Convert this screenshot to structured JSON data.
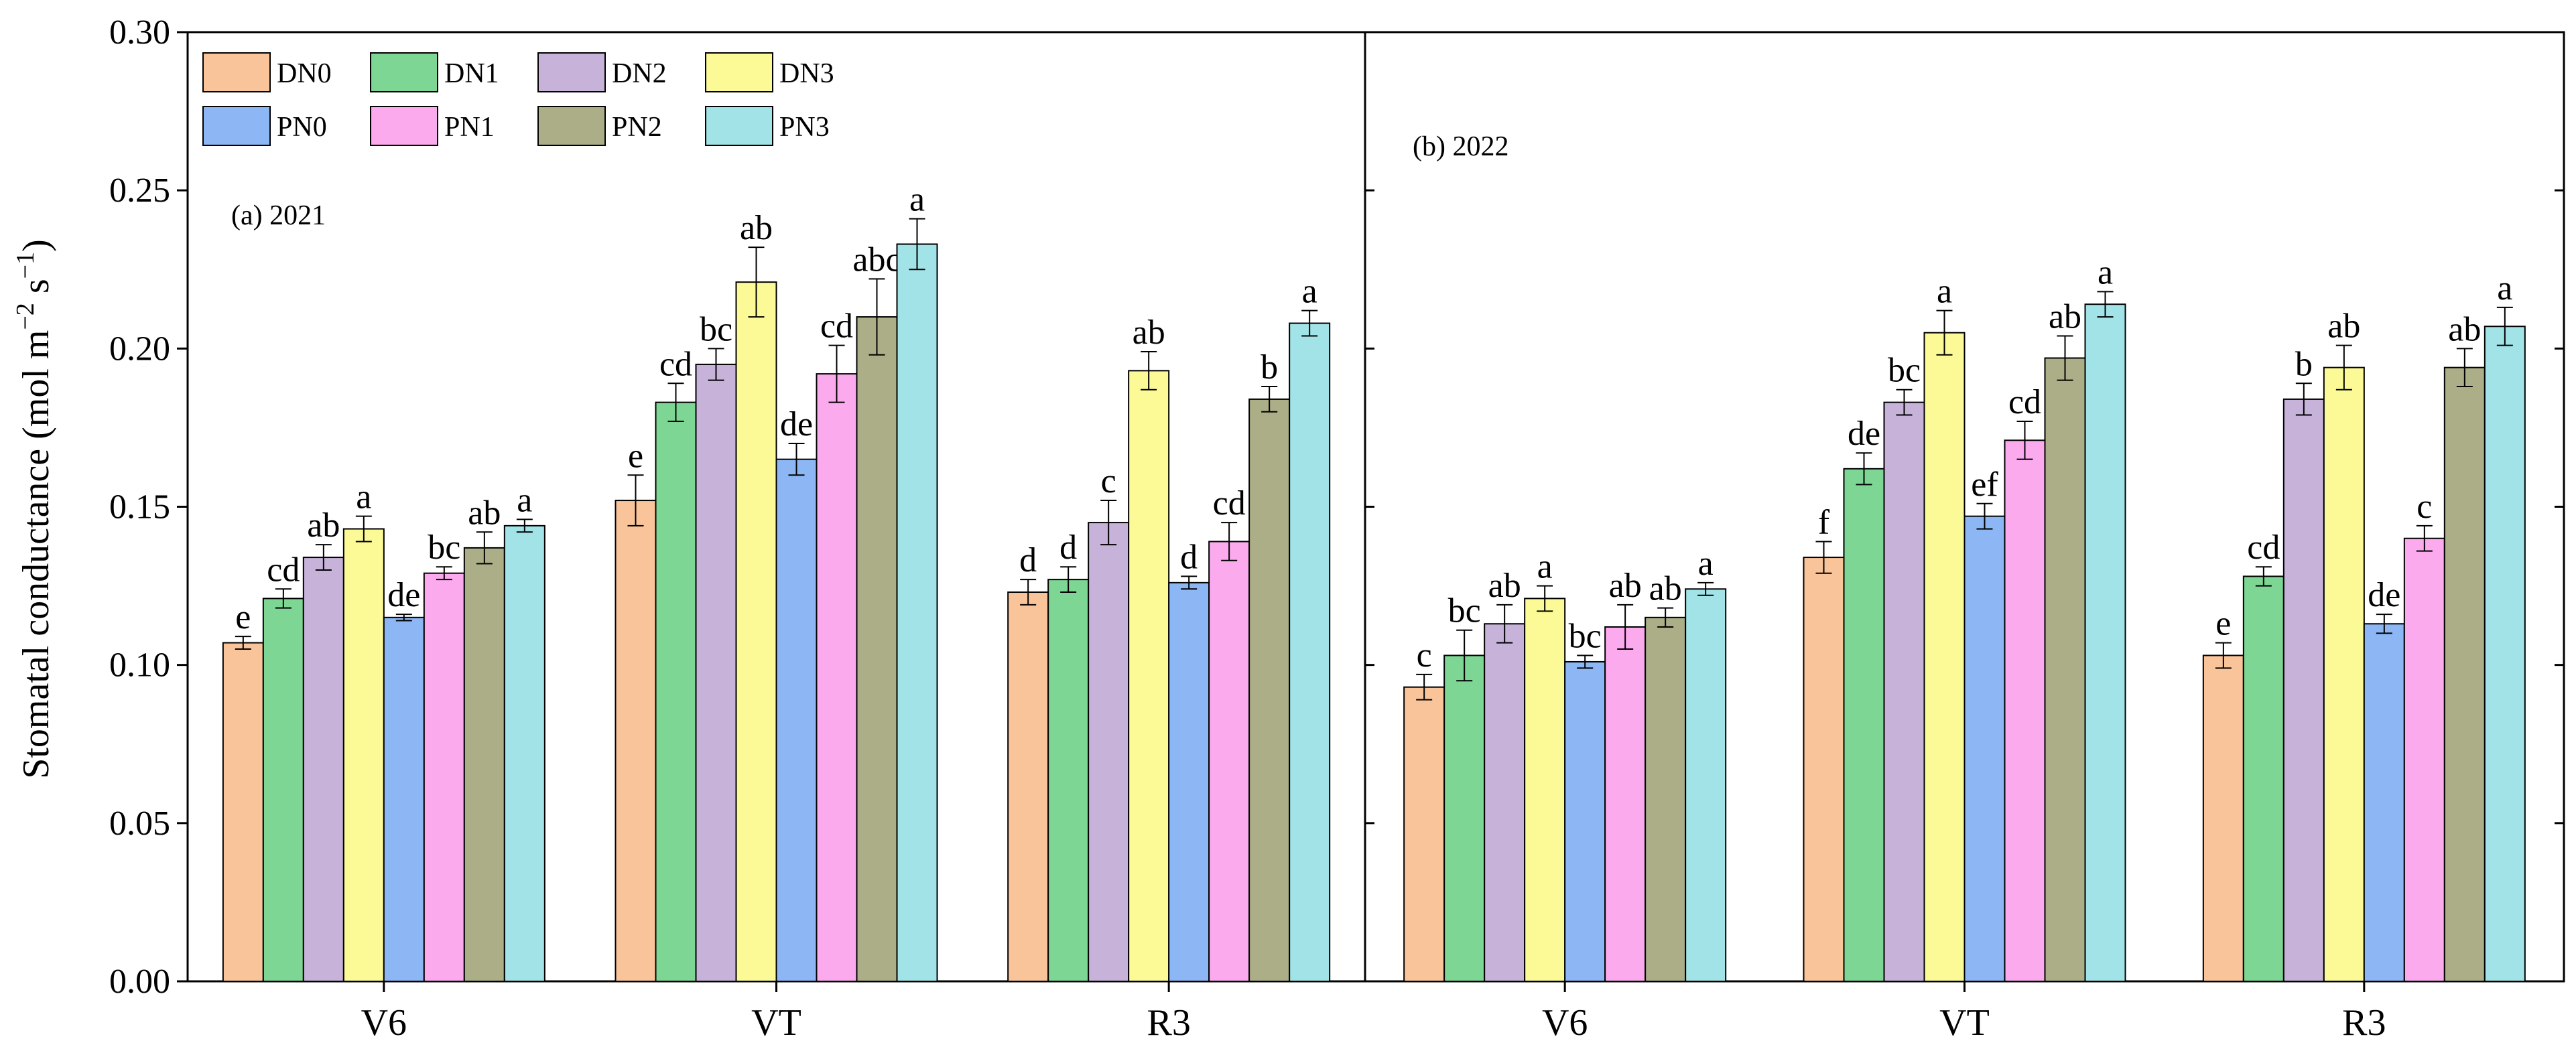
{
  "chart_data": {
    "type": "bar",
    "ylabel": "Stomatal conductance (mol m",
    "ylabel_sup1": "−2",
    "ylabel_mid": " s",
    "ylabel_sup2": "−1",
    "ylabel_end": ")",
    "ylim": [
      0,
      0.3
    ],
    "yticks": [
      "0.00",
      "0.05",
      "0.10",
      "0.15",
      "0.20",
      "0.25",
      "0.30"
    ],
    "categories": [
      "V6",
      "VT",
      "R3"
    ],
    "legend": [
      {
        "name": "DN0",
        "color": "#F9C49A"
      },
      {
        "name": "DN1",
        "color": "#7DD693"
      },
      {
        "name": "DN2",
        "color": "#C7B2DA"
      },
      {
        "name": "DN3",
        "color": "#FBFA96"
      },
      {
        "name": "PN0",
        "color": "#8CB7F4"
      },
      {
        "name": "PN1",
        "color": "#FBAAEE"
      },
      {
        "name": "PN2",
        "color": "#ABAE87"
      },
      {
        "name": "PN3",
        "color": "#A2E3E8"
      }
    ],
    "panels": [
      {
        "label": "(a) 2021",
        "series": [
          {
            "name": "DN0",
            "values": [
              0.107,
              0.152,
              0.123
            ],
            "errors": [
              0.002,
              0.008,
              0.004
            ],
            "letters": [
              "e",
              "e",
              "d"
            ]
          },
          {
            "name": "DN1",
            "values": [
              0.121,
              0.183,
              0.127
            ],
            "errors": [
              0.003,
              0.006,
              0.004
            ],
            "letters": [
              "cd",
              "cd",
              "d"
            ]
          },
          {
            "name": "DN2",
            "values": [
              0.134,
              0.195,
              0.145
            ],
            "errors": [
              0.004,
              0.005,
              0.007
            ],
            "letters": [
              "ab",
              "bc",
              "c"
            ]
          },
          {
            "name": "DN3",
            "values": [
              0.143,
              0.221,
              0.193
            ],
            "errors": [
              0.004,
              0.011,
              0.006
            ],
            "letters": [
              "a",
              "ab",
              "ab"
            ]
          },
          {
            "name": "PN0",
            "values": [
              0.115,
              0.165,
              0.126
            ],
            "errors": [
              0.001,
              0.005,
              0.002
            ],
            "letters": [
              "de",
              "de",
              "d"
            ]
          },
          {
            "name": "PN1",
            "values": [
              0.129,
              0.192,
              0.139
            ],
            "errors": [
              0.002,
              0.009,
              0.006
            ],
            "letters": [
              "bc",
              "cd",
              "cd"
            ]
          },
          {
            "name": "PN2",
            "values": [
              0.137,
              0.21,
              0.184
            ],
            "errors": [
              0.005,
              0.012,
              0.004
            ],
            "letters": [
              "ab",
              "abc",
              "b"
            ]
          },
          {
            "name": "PN3",
            "values": [
              0.144,
              0.233,
              0.208
            ],
            "errors": [
              0.002,
              0.008,
              0.004
            ],
            "letters": [
              "a",
              "a",
              "a"
            ]
          }
        ]
      },
      {
        "label": "(b) 2022",
        "series": [
          {
            "name": "DN0",
            "values": [
              0.093,
              0.134,
              0.103
            ],
            "errors": [
              0.004,
              0.005,
              0.004
            ],
            "letters": [
              "c",
              "f",
              "e"
            ]
          },
          {
            "name": "DN1",
            "values": [
              0.103,
              0.162,
              0.128
            ],
            "errors": [
              0.008,
              0.005,
              0.003
            ],
            "letters": [
              "bc",
              "de",
              "cd"
            ]
          },
          {
            "name": "DN2",
            "values": [
              0.113,
              0.183,
              0.184
            ],
            "errors": [
              0.006,
              0.004,
              0.005
            ],
            "letters": [
              "ab",
              "bc",
              "b"
            ]
          },
          {
            "name": "DN3",
            "values": [
              0.121,
              0.205,
              0.194
            ],
            "errors": [
              0.004,
              0.007,
              0.007
            ],
            "letters": [
              "a",
              "a",
              "ab"
            ]
          },
          {
            "name": "PN0",
            "values": [
              0.101,
              0.147,
              0.113
            ],
            "errors": [
              0.002,
              0.004,
              0.003
            ],
            "letters": [
              "bc",
              "ef",
              "de"
            ]
          },
          {
            "name": "PN1",
            "values": [
              0.112,
              0.171,
              0.14
            ],
            "errors": [
              0.007,
              0.006,
              0.004
            ],
            "letters": [
              "ab",
              "cd",
              "c"
            ]
          },
          {
            "name": "PN2",
            "values": [
              0.115,
              0.197,
              0.194
            ],
            "errors": [
              0.003,
              0.007,
              0.006
            ],
            "letters": [
              "ab",
              "ab",
              "ab"
            ]
          },
          {
            "name": "PN3",
            "values": [
              0.124,
              0.214,
              0.207
            ],
            "errors": [
              0.002,
              0.004,
              0.006
            ],
            "letters": [
              "a",
              "a",
              "a"
            ]
          }
        ]
      }
    ]
  }
}
